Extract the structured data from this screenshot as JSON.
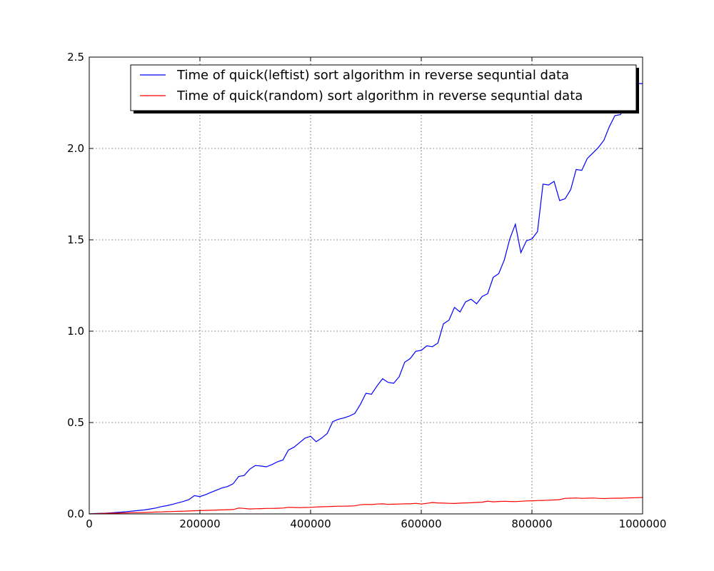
{
  "chart_data": {
    "type": "line",
    "title": "",
    "xlabel": "",
    "ylabel": "",
    "xlim": [
      0,
      1000000
    ],
    "ylim": [
      0,
      2.5
    ],
    "grid": true,
    "legend_position": "top-right",
    "x_ticks": [
      {
        "value": 0,
        "label": "0"
      },
      {
        "value": 200000,
        "label": "200000"
      },
      {
        "value": 400000,
        "label": "400000"
      },
      {
        "value": 600000,
        "label": "600000"
      },
      {
        "value": 800000,
        "label": "800000"
      },
      {
        "value": 1000000,
        "label": "1000000"
      }
    ],
    "y_ticks": [
      {
        "value": 0,
        "label": "0.0"
      },
      {
        "value": 0.5,
        "label": "0.5"
      },
      {
        "value": 1.0,
        "label": "1.0"
      },
      {
        "value": 1.5,
        "label": "1.5"
      },
      {
        "value": 2.0,
        "label": "2.0"
      },
      {
        "value": 2.5,
        "label": "2.5"
      }
    ],
    "x": [
      10000,
      20000,
      30000,
      40000,
      50000,
      60000,
      70000,
      80000,
      90000,
      100000,
      110000,
      120000,
      130000,
      140000,
      150000,
      160000,
      170000,
      180000,
      190000,
      200000,
      210000,
      220000,
      230000,
      240000,
      250000,
      260000,
      270000,
      280000,
      290000,
      300000,
      310000,
      320000,
      330000,
      340000,
      350000,
      360000,
      370000,
      380000,
      390000,
      400000,
      410000,
      420000,
      430000,
      440000,
      450000,
      460000,
      470000,
      480000,
      490000,
      500000,
      510000,
      520000,
      530000,
      540000,
      550000,
      560000,
      570000,
      580000,
      590000,
      600000,
      610000,
      620000,
      630000,
      640000,
      650000,
      660000,
      670000,
      680000,
      690000,
      700000,
      710000,
      720000,
      730000,
      740000,
      750000,
      760000,
      770000,
      780000,
      790000,
      800000,
      810000,
      820000,
      830000,
      840000,
      850000,
      860000,
      870000,
      880000,
      890000,
      900000,
      910000,
      920000,
      930000,
      940000,
      950000,
      960000,
      970000,
      980000,
      990000,
      1000000
    ],
    "series": [
      {
        "name": "Time of quick(leftist) sort algorithm in reverse sequntial data",
        "color": "#0000ff",
        "values": [
          0.002,
          0.003,
          0.004,
          0.006,
          0.008,
          0.01,
          0.013,
          0.016,
          0.019,
          0.022,
          0.027,
          0.032,
          0.04,
          0.045,
          0.052,
          0.06,
          0.068,
          0.078,
          0.1,
          0.095,
          0.105,
          0.118,
          0.13,
          0.142,
          0.15,
          0.165,
          0.205,
          0.21,
          0.245,
          0.265,
          0.262,
          0.258,
          0.27,
          0.285,
          0.295,
          0.35,
          0.365,
          0.39,
          0.415,
          0.425,
          0.395,
          0.415,
          0.44,
          0.505,
          0.518,
          0.525,
          0.535,
          0.55,
          0.6,
          0.66,
          0.655,
          0.7,
          0.74,
          0.72,
          0.715,
          0.75,
          0.83,
          0.85,
          0.89,
          0.895,
          0.92,
          0.915,
          0.935,
          1.04,
          1.06,
          1.13,
          1.105,
          1.16,
          1.175,
          1.15,
          1.19,
          1.205,
          1.295,
          1.315,
          1.39,
          1.505,
          1.585,
          1.43,
          1.495,
          1.505,
          1.545,
          1.805,
          1.8,
          1.82,
          1.715,
          1.725,
          1.775,
          1.885,
          1.88,
          1.945,
          1.975,
          2.005,
          2.045,
          2.12,
          2.18,
          2.185,
          2.235,
          2.3,
          2.355,
          2.355
        ]
      },
      {
        "name": "Time of quick(random) sort algorithm in reverse sequntial data",
        "color": "#ff0000",
        "values": [
          0.001,
          0.002,
          0.003,
          0.004,
          0.004,
          0.005,
          0.006,
          0.007,
          0.007,
          0.008,
          0.009,
          0.01,
          0.011,
          0.012,
          0.013,
          0.014,
          0.015,
          0.016,
          0.017,
          0.018,
          0.019,
          0.02,
          0.021,
          0.022,
          0.023,
          0.024,
          0.032,
          0.03,
          0.027,
          0.028,
          0.029,
          0.03,
          0.03,
          0.031,
          0.032,
          0.036,
          0.035,
          0.034,
          0.035,
          0.036,
          0.038,
          0.039,
          0.04,
          0.041,
          0.042,
          0.042,
          0.043,
          0.044,
          0.05,
          0.052,
          0.051,
          0.054,
          0.055,
          0.052,
          0.053,
          0.054,
          0.055,
          0.055,
          0.058,
          0.054,
          0.058,
          0.062,
          0.06,
          0.059,
          0.058,
          0.057,
          0.059,
          0.06,
          0.061,
          0.063,
          0.064,
          0.07,
          0.066,
          0.068,
          0.069,
          0.068,
          0.067,
          0.069,
          0.071,
          0.072,
          0.073,
          0.074,
          0.075,
          0.076,
          0.078,
          0.085,
          0.086,
          0.087,
          0.085,
          0.086,
          0.087,
          0.085,
          0.084,
          0.085,
          0.086,
          0.086,
          0.087,
          0.088,
          0.089,
          0.09
        ]
      }
    ]
  }
}
